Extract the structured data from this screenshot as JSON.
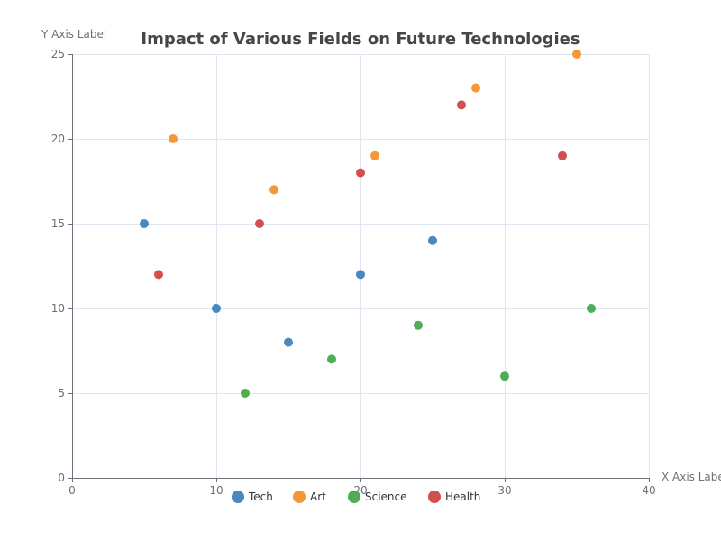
{
  "chart_data": {
    "type": "scatter",
    "title": "Impact of Various Fields on Future Technologies",
    "xlabel": "X Axis Label",
    "ylabel": "Y Axis Label",
    "xlim": [
      0,
      40
    ],
    "ylim": [
      0,
      25
    ],
    "x_ticks": [
      0,
      10,
      20,
      30,
      40
    ],
    "y_ticks": [
      0,
      5,
      10,
      15,
      20,
      25
    ],
    "grid": true,
    "legend_position": "bottom",
    "series": [
      {
        "name": "Tech",
        "color": "#4a89be",
        "points": [
          [
            5,
            15
          ],
          [
            10,
            10
          ],
          [
            15,
            8
          ],
          [
            20,
            12
          ],
          [
            25,
            14
          ]
        ]
      },
      {
        "name": "Art",
        "color": "#f59738",
        "points": [
          [
            7,
            20
          ],
          [
            14,
            17
          ],
          [
            21,
            19
          ],
          [
            28,
            23
          ],
          [
            35,
            25
          ]
        ]
      },
      {
        "name": "Science",
        "color": "#4fae54",
        "points": [
          [
            12,
            5
          ],
          [
            18,
            7
          ],
          [
            24,
            9
          ],
          [
            30,
            6
          ],
          [
            36,
            10
          ]
        ]
      },
      {
        "name": "Health",
        "color": "#d34e4f",
        "points": [
          [
            6,
            12
          ],
          [
            13,
            15
          ],
          [
            20,
            18
          ],
          [
            27,
            22
          ],
          [
            34,
            19
          ]
        ]
      }
    ]
  }
}
